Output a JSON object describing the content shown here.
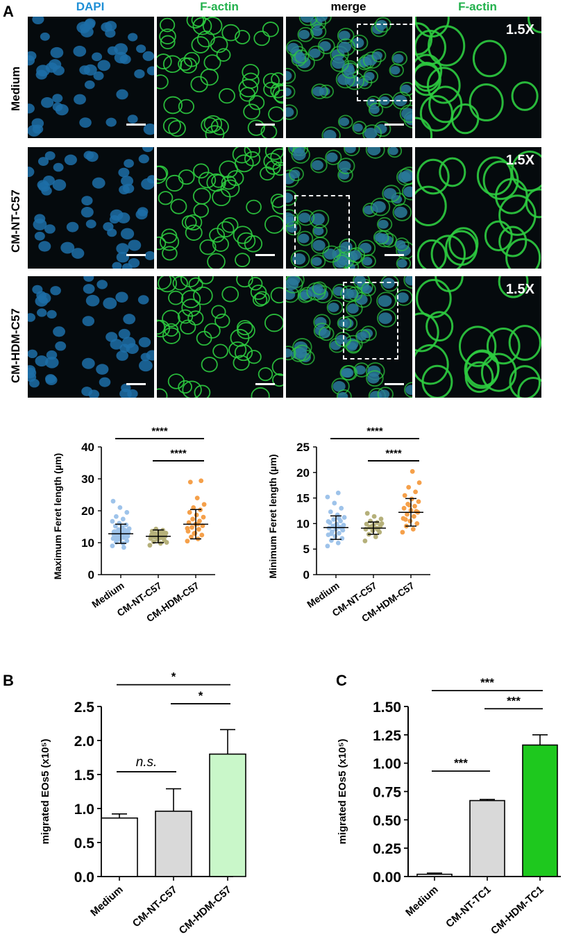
{
  "panel_a": {
    "letter": "A",
    "columns": [
      "DAPI",
      "F-actin",
      "merge",
      "F-actin"
    ],
    "column_colors": [
      "#1f8fd6",
      "#22b14c",
      "#000000",
      "#22b14c"
    ],
    "rows": [
      "Medium",
      "CM-NT-C57",
      "CM-HDM-C57"
    ],
    "zoom_label": "1.5X"
  },
  "panel_b": {
    "letter": "B"
  },
  "panel_c": {
    "letter": "C"
  },
  "chart_data": [
    {
      "type": "scatter",
      "ylabel": "Maximum Feret length (µm)",
      "ylim": [
        0,
        40
      ],
      "yticks": [
        "0",
        "10",
        "20",
        "30",
        "40"
      ],
      "categories": [
        "Medium",
        "CM-NT-C57",
        "CM-HDM-C57"
      ],
      "colors": [
        "#9ec3ea",
        "#b5b07a",
        "#f5a04a"
      ],
      "mean": [
        12.8,
        12.0,
        15.8
      ],
      "sd": [
        3.0,
        2.0,
        4.6
      ],
      "points": [
        [
          9.0,
          9.8,
          10.2,
          10.6,
          11.0,
          11.3,
          11.6,
          11.9,
          12.1,
          12.3,
          12.5,
          12.7,
          12.9,
          13.1,
          13.3,
          13.5,
          13.8,
          14.1,
          14.4,
          14.8,
          15.2,
          15.6,
          16.1,
          16.7,
          17.4,
          18.2,
          19.5,
          21.0,
          23.0,
          8.5,
          10.9,
          12.0,
          12.6,
          13.4,
          14.0
        ],
        [
          9.2,
          9.8,
          10.3,
          10.7,
          11.0,
          11.3,
          11.6,
          11.8,
          12.0,
          12.2,
          12.4,
          12.6,
          12.8,
          13.0,
          13.3,
          13.6,
          13.9,
          14.3,
          10.1,
          11.5,
          12.1,
          12.9
        ],
        [
          10.5,
          11.2,
          11.8,
          12.4,
          13.0,
          13.6,
          14.2,
          14.8,
          15.3,
          15.8,
          16.3,
          16.8,
          17.4,
          18.0,
          18.7,
          19.5,
          20.3,
          21.0,
          22.0,
          24.0,
          29.0,
          29.4,
          12.9,
          14.5,
          15.9
        ]
      ],
      "significance": [
        {
          "from": 0,
          "to": 2,
          "label": "****"
        },
        {
          "from": 1,
          "to": 2,
          "label": "****"
        }
      ]
    },
    {
      "type": "scatter",
      "ylabel": "Minimum Feret length (µm)",
      "ylim": [
        0,
        25
      ],
      "yticks": [
        "0",
        "5",
        "10",
        "15",
        "20",
        "25"
      ],
      "categories": [
        "Medium",
        "CM-NT-C57",
        "CM-HDM-C57"
      ],
      "colors": [
        "#9ec3ea",
        "#b5b07a",
        "#f5a04a"
      ],
      "mean": [
        9.2,
        9.1,
        12.2
      ],
      "sd": [
        2.3,
        1.2,
        2.7
      ],
      "points": [
        [
          5.6,
          6.2,
          6.7,
          7.1,
          7.5,
          7.8,
          8.1,
          8.4,
          8.7,
          8.9,
          9.1,
          9.3,
          9.5,
          9.7,
          9.9,
          10.2,
          10.5,
          10.8,
          11.2,
          11.7,
          12.3,
          13.0,
          14.0,
          15.2,
          16.0,
          8.0,
          9.0,
          9.6,
          10.4,
          11.0
        ],
        [
          6.6,
          7.4,
          7.9,
          8.3,
          8.6,
          8.9,
          9.1,
          9.3,
          9.5,
          9.7,
          9.9,
          10.2,
          10.5,
          10.9,
          11.4,
          12.0,
          8.8,
          9.4,
          10.0
        ],
        [
          8.3,
          8.9,
          9.5,
          10.0,
          10.5,
          11.0,
          11.4,
          11.8,
          12.2,
          12.6,
          13.0,
          13.4,
          13.8,
          14.3,
          14.8,
          15.5,
          16.2,
          17.1,
          18.0,
          20.2,
          10.8,
          12.4,
          13.6
        ]
      ],
      "significance": [
        {
          "from": 0,
          "to": 2,
          "label": "****"
        },
        {
          "from": 1,
          "to": 2,
          "label": "****"
        }
      ]
    },
    {
      "type": "bar",
      "ylabel": "migrated EOs5 (x10⁵)",
      "ylim": [
        0,
        2.5
      ],
      "yticks": [
        "0.0",
        "0.5",
        "1.0",
        "1.5",
        "2.0",
        "2.5"
      ],
      "categories": [
        "Medium",
        "CM-NT-C57",
        "CM-HDM-C57"
      ],
      "values": [
        0.86,
        0.96,
        1.8
      ],
      "errors": [
        0.06,
        0.33,
        0.36
      ],
      "fills": [
        "#ffffff",
        "#d9d9d9",
        "#c9f7c9"
      ],
      "significance": [
        {
          "from": 0,
          "to": 2,
          "label": "*",
          "y": 2.82
        },
        {
          "from": 1,
          "to": 2,
          "label": "*",
          "y": 2.54
        },
        {
          "from": 0,
          "to": 1,
          "label": "n.s.",
          "y": 1.54
        }
      ]
    },
    {
      "type": "bar",
      "ylabel": "migrated EOs5 (x10⁵)",
      "ylim": [
        0,
        1.5
      ],
      "yticks": [
        "0.00",
        "0.25",
        "0.50",
        "0.75",
        "1.00",
        "1.25",
        "1.50"
      ],
      "categories": [
        "Medium",
        "CM-NT-TC1",
        "CM-HDM-TC1"
      ],
      "values": [
        0.02,
        0.67,
        1.16
      ],
      "errors": [
        0.01,
        0.01,
        0.09
      ],
      "fills": [
        "#ffffff",
        "#d9d9d9",
        "#1ec81e"
      ],
      "significance": [
        {
          "from": 0,
          "to": 2,
          "label": "***",
          "y": 1.64
        },
        {
          "from": 1,
          "to": 2,
          "label": "***",
          "y": 1.48
        },
        {
          "from": 0,
          "to": 1,
          "label": "***",
          "y": 0.93
        }
      ]
    }
  ]
}
